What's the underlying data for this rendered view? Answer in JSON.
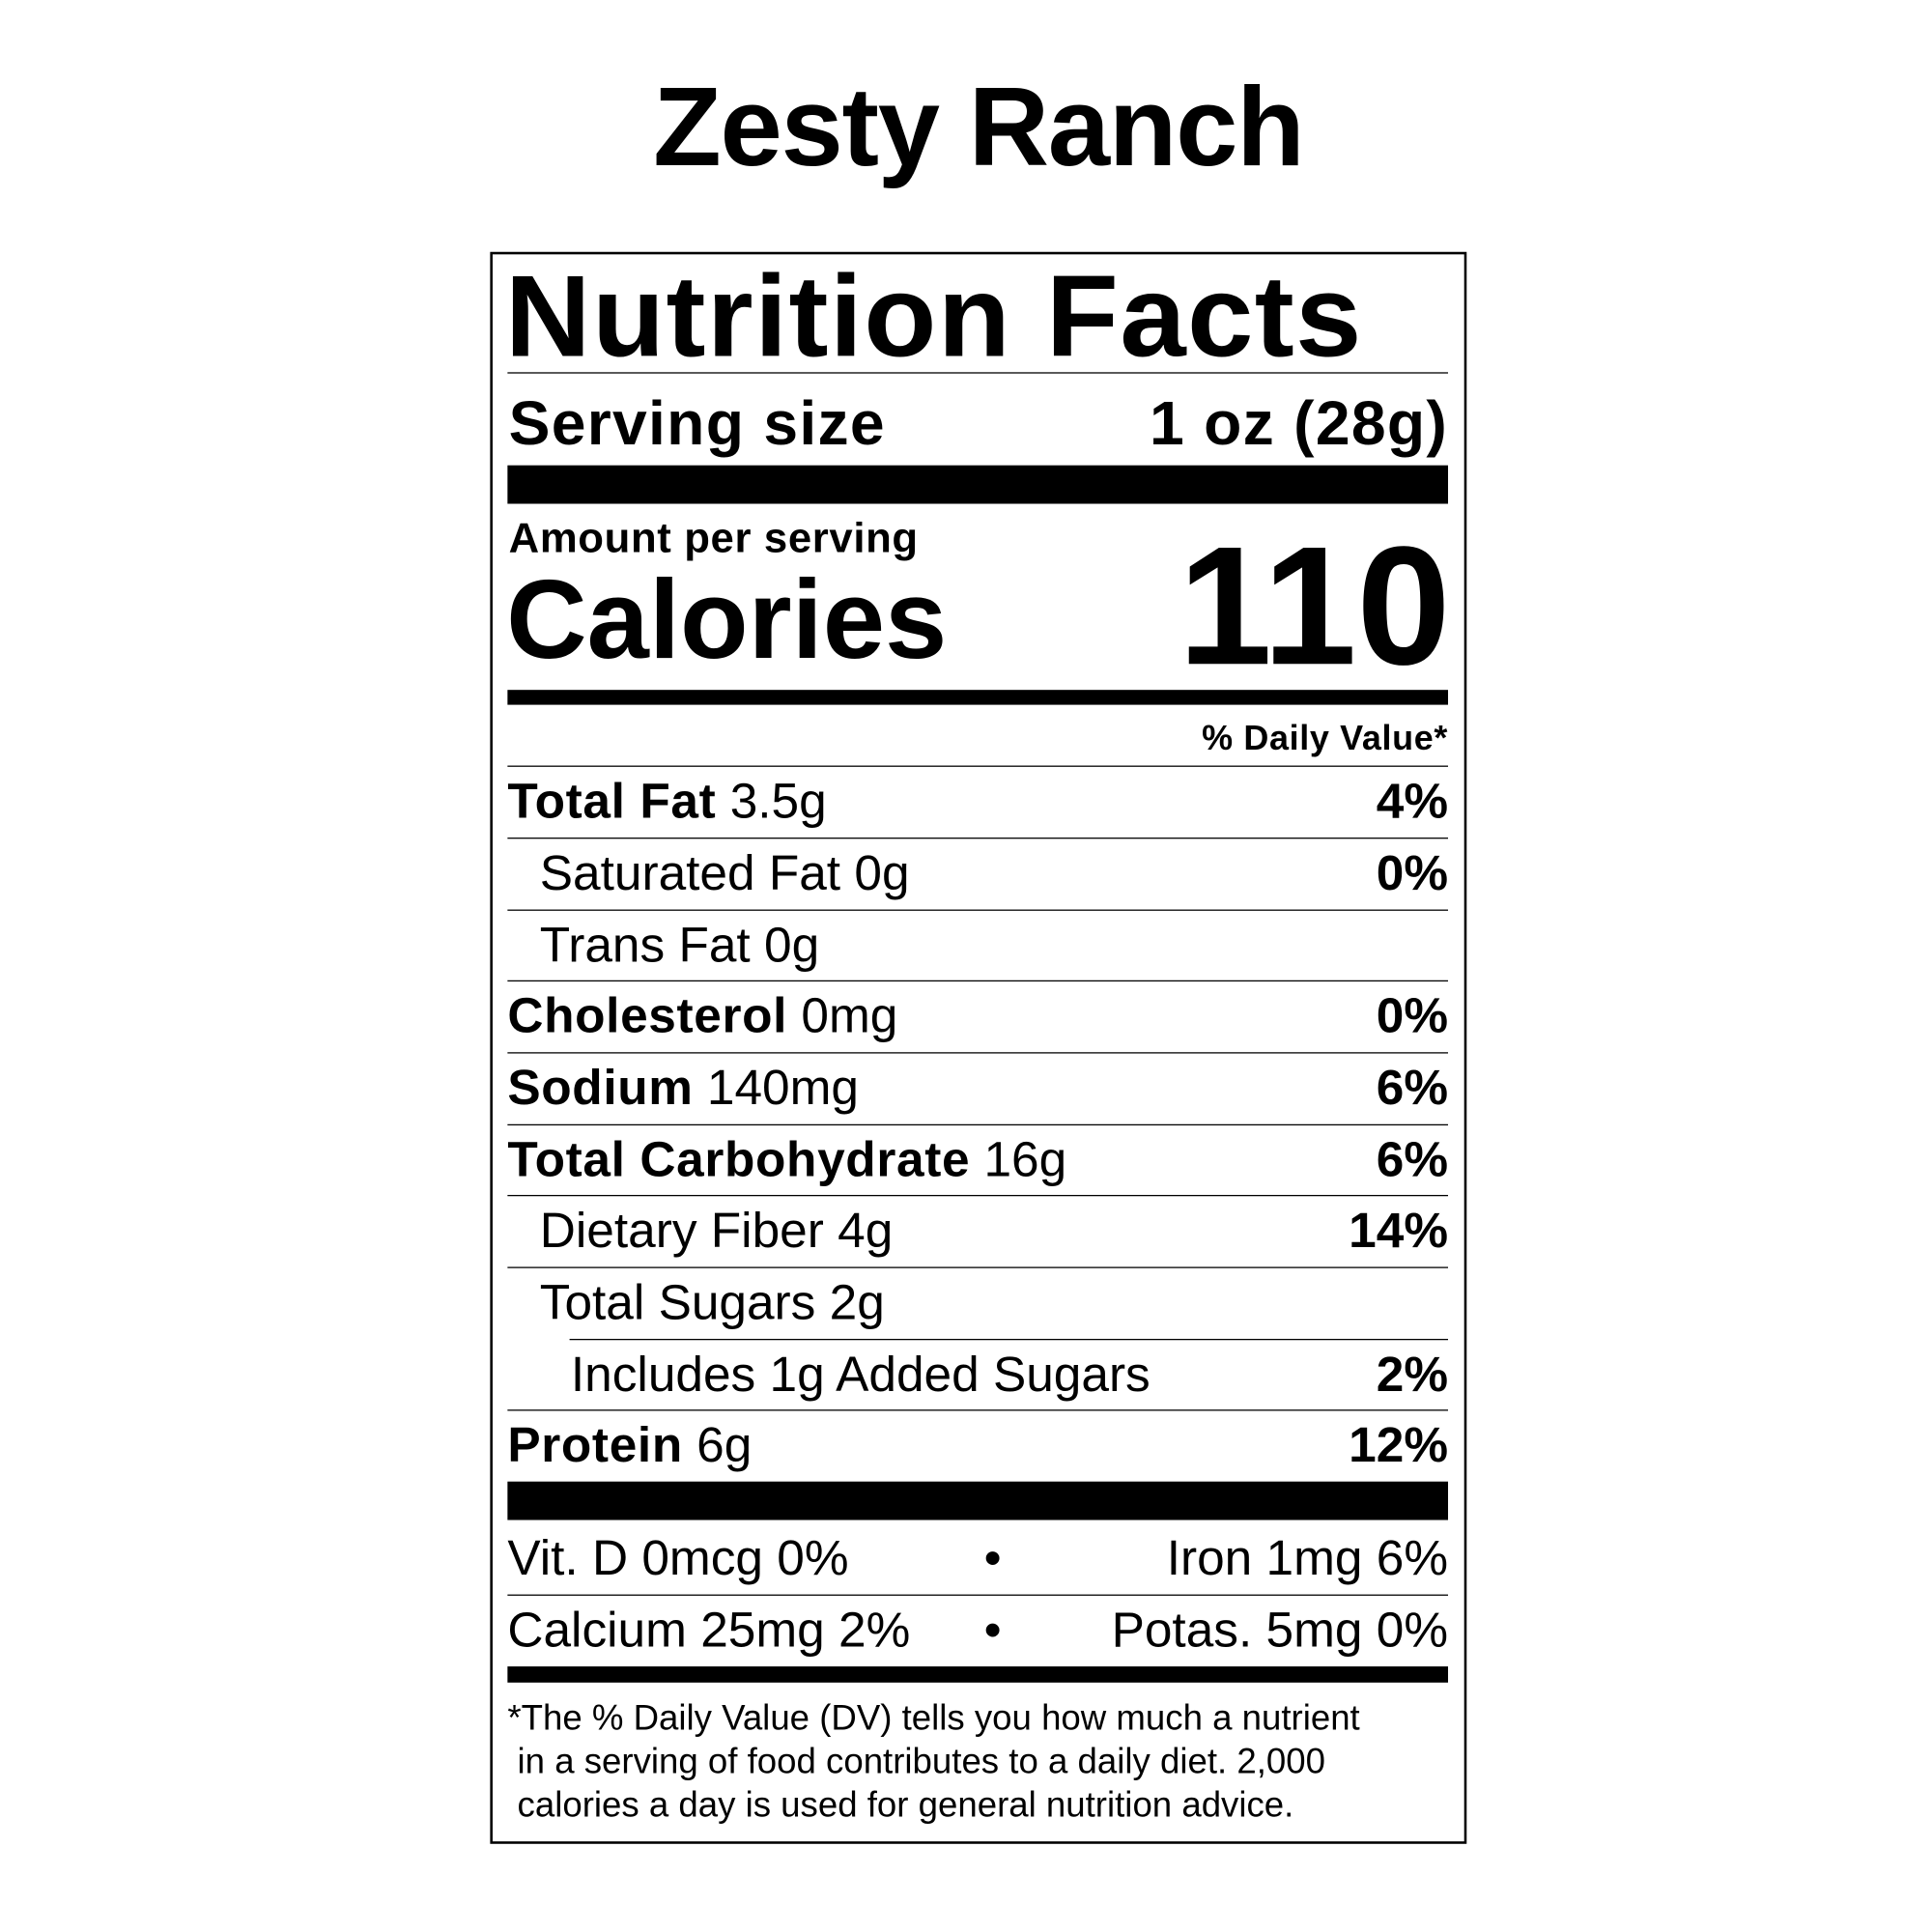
{
  "product_name": "Zesty Ranch",
  "label": {
    "title": "Nutrition Facts",
    "serving_size_label": "Serving size",
    "serving_size_value": "1 oz (28g)",
    "amount_per_serving": "Amount per serving",
    "calories_label": "Calories",
    "calories_value": "110",
    "daily_value_header": "% Daily Value*",
    "nutrients": [
      {
        "name": "Total Fat",
        "amount": "3.5g",
        "dv": "4%"
      },
      {
        "name": "Saturated Fat",
        "amount": "0g",
        "dv": "0%"
      },
      {
        "name": "Trans Fat",
        "amount": "0g",
        "dv": ""
      },
      {
        "name": "Cholesterol",
        "amount": "0mg",
        "dv": "0%"
      },
      {
        "name": "Sodium",
        "amount": "140mg",
        "dv": "6%"
      },
      {
        "name": "Total Carbohydrate",
        "amount": "16g",
        "dv": "6%"
      },
      {
        "name": "Dietary Fiber",
        "amount": "4g",
        "dv": "14%"
      },
      {
        "name": "Total Sugars",
        "amount": "2g",
        "dv": ""
      },
      {
        "name": "Includes 1g Added Sugars",
        "amount": "",
        "dv": "2%"
      },
      {
        "name": "Protein",
        "amount": "6g",
        "dv": "12%"
      }
    ],
    "vitamins": [
      {
        "left": "Vit. D 0mcg 0%",
        "right": "Iron 1mg 6%"
      },
      {
        "left": "Calcium 25mg 2%",
        "right": "Potas. 5mg 0%"
      }
    ],
    "bullet": "•",
    "footnote": [
      "*The % Daily Value (DV) tells you how much a nutrient",
      " in a serving of food contributes to a daily diet. 2,000",
      " calories a day is used for general nutrition advice."
    ]
  }
}
